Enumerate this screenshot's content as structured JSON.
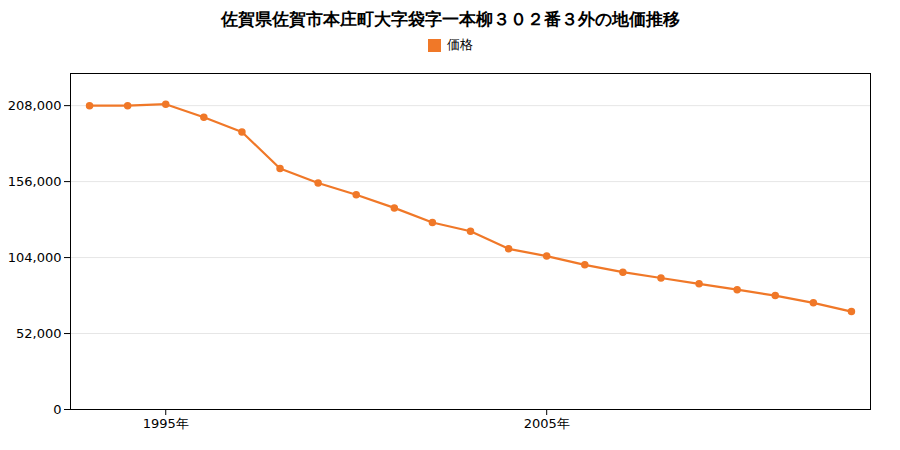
{
  "chart_data": {
    "type": "line",
    "title": "佐賀県佐賀市本庄町大字袋字一本柳３０２番３外の地価推移",
    "x": [
      1993,
      1994,
      1995,
      1996,
      1997,
      1998,
      1999,
      2000,
      2001,
      2002,
      2003,
      2004,
      2005,
      2006,
      2007,
      2008,
      2009,
      2010,
      2011,
      2012,
      2013
    ],
    "series": [
      {
        "name": "価格",
        "color": "#f07828",
        "marker": "circle",
        "values": [
          208000,
          208000,
          209000,
          200000,
          190000,
          165000,
          155000,
          147000,
          138000,
          128000,
          122000,
          110000,
          105000,
          99000,
          94000,
          90000,
          86000,
          82000,
          78000,
          73000,
          67000
        ]
      }
    ],
    "xlim": [
      1992.5,
      2013.5
    ],
    "xticks": [
      {
        "value": 1995,
        "label": "1995年"
      },
      {
        "value": 2005,
        "label": "2005年"
      }
    ],
    "ylim": [
      0,
      230000
    ],
    "yticks": [
      0,
      {
        "value": 52000,
        "label": "52,000"
      },
      {
        "value": 104000,
        "label": "104,000"
      },
      {
        "value": 156000,
        "label": "156,000"
      },
      {
        "value": 208000,
        "label": "208,000"
      }
    ],
    "grid": "y",
    "legend": "top"
  }
}
